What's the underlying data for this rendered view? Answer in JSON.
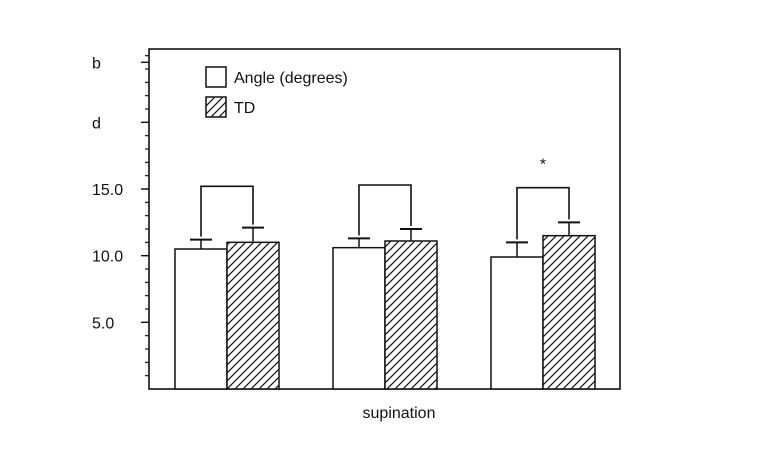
{
  "chart_data": {
    "type": "bar",
    "title": "",
    "xlabel": "supination",
    "ylabel": "",
    "ylim": [
      0,
      25.5
    ],
    "y_tick_labels": [
      {
        "value": 5.0,
        "text": "5.0"
      },
      {
        "value": 10.0,
        "text": "10.0"
      },
      {
        "value": 15.0,
        "text": "15.0"
      },
      {
        "value": 20.0,
        "text": "d"
      },
      {
        "value": 24.5,
        "text": "b"
      }
    ],
    "y_minor_step": 1.0,
    "grid": false,
    "legend_position": "top-left",
    "series": [
      {
        "name": "Angle (degrees)",
        "pattern": "open",
        "values": [
          10.5,
          10.6,
          9.9
        ],
        "errors": [
          0.7,
          0.7,
          1.1
        ]
      },
      {
        "name": "TD",
        "pattern": "hatched",
        "values": [
          11.0,
          11.1,
          11.5
        ],
        "errors": [
          1.1,
          0.9,
          1.0
        ]
      }
    ],
    "group_count": 3,
    "brackets": [
      {
        "group": 0,
        "value": 15.2,
        "label": ""
      },
      {
        "group": 1,
        "value": 15.3,
        "label": ""
      },
      {
        "group": 2,
        "value": 15.1,
        "label": "*"
      }
    ],
    "colors": {
      "axis": "#111111",
      "bar_fill": "#ffffff",
      "hatch": "#111111"
    }
  }
}
